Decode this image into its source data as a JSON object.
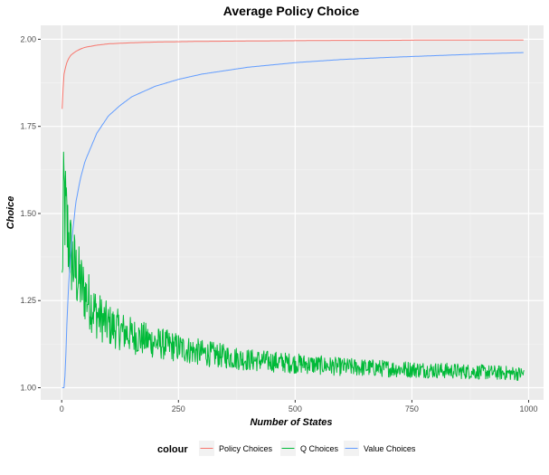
{
  "chart_data": {
    "type": "line",
    "title": "Average Policy Choice",
    "xlabel": "Number of States",
    "ylabel": "Choice",
    "xlim": [
      -45,
      1032
    ],
    "ylim": [
      0.965,
      2.04
    ],
    "x_ticks": [
      0,
      250,
      500,
      750,
      1000
    ],
    "x_tick_labels": [
      "0",
      "250",
      "500",
      "750",
      "1000"
    ],
    "y_ticks": [
      1.0,
      1.25,
      1.5,
      1.75,
      2.0
    ],
    "y_tick_labels": [
      "1.00",
      "1.25",
      "1.50",
      "1.75",
      "2.00"
    ],
    "grid": true,
    "legend": {
      "title": "colour",
      "position": "bottom",
      "entries": [
        "Policy Choices",
        "Q Choices",
        "Value Choices"
      ]
    },
    "series": [
      {
        "name": "Policy Choices",
        "color": "#F8766D",
        "x": [
          1,
          3,
          5,
          10,
          15,
          20,
          30,
          40,
          50,
          75,
          100,
          150,
          200,
          300,
          400,
          500,
          600,
          700,
          800,
          900,
          990
        ],
        "values": [
          1.8,
          1.86,
          1.9,
          1.93,
          1.945,
          1.955,
          1.965,
          1.972,
          1.977,
          1.983,
          1.987,
          1.99,
          1.992,
          1.994,
          1.995,
          1.996,
          1.997,
          1.997,
          1.998,
          1.998,
          1.998
        ]
      },
      {
        "name": "Q Choices",
        "color": "#00BA38",
        "noisy": true,
        "x": [
          1,
          3,
          5,
          8,
          12,
          20,
          30,
          50,
          75,
          100,
          150,
          200,
          250,
          300,
          400,
          500,
          600,
          700,
          800,
          900,
          990
        ],
        "values": [
          1.3,
          1.48,
          1.55,
          1.5,
          1.45,
          1.38,
          1.33,
          1.27,
          1.21,
          1.18,
          1.15,
          1.13,
          1.115,
          1.1,
          1.08,
          1.07,
          1.06,
          1.055,
          1.05,
          1.045,
          1.04
        ]
      },
      {
        "name": "Value Choices",
        "color": "#619CFF",
        "x": [
          1,
          5,
          8,
          10,
          15,
          20,
          30,
          40,
          50,
          75,
          100,
          125,
          150,
          200,
          250,
          300,
          400,
          500,
          600,
          700,
          800,
          900,
          990
        ],
        "values": [
          1.0,
          1.0,
          1.05,
          1.15,
          1.3,
          1.4,
          1.53,
          1.6,
          1.65,
          1.73,
          1.78,
          1.81,
          1.835,
          1.865,
          1.885,
          1.9,
          1.92,
          1.933,
          1.942,
          1.948,
          1.953,
          1.958,
          1.962
        ]
      }
    ]
  }
}
